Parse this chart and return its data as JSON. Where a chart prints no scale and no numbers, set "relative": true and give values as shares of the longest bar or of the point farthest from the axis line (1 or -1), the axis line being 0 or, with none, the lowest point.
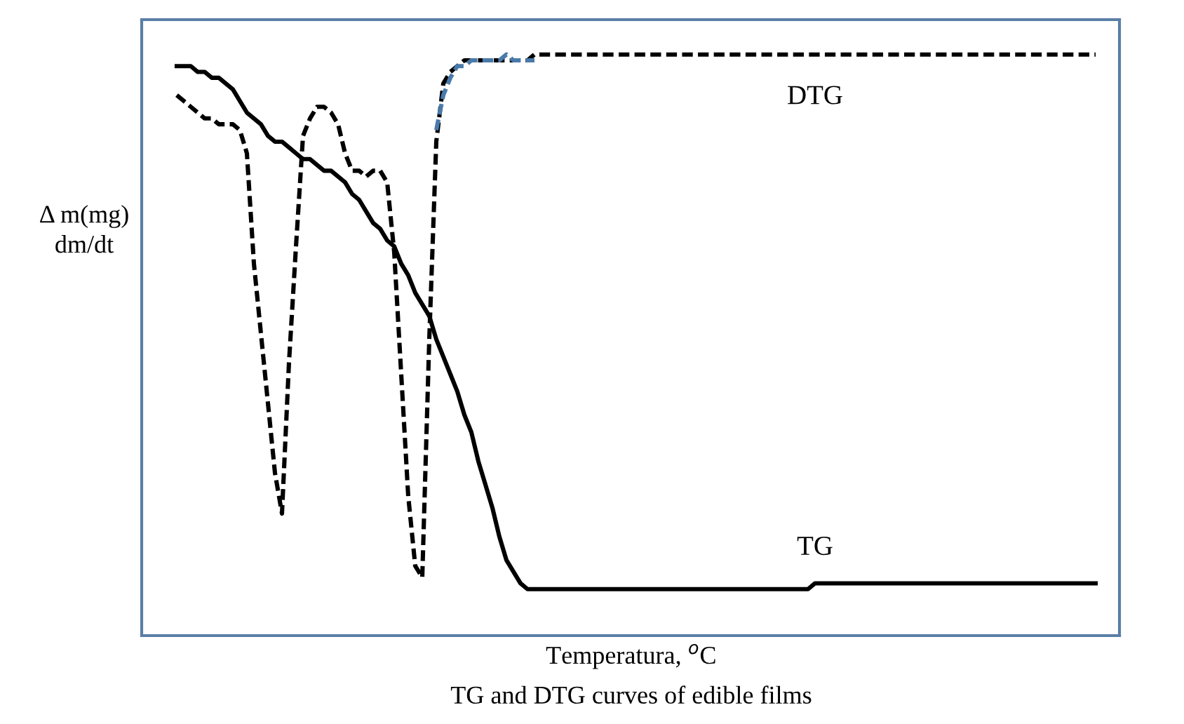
{
  "chart_data": {
    "type": "line",
    "relative": true,
    "ylabel": "Δ m(mg)\ndm/dt",
    "xlabel": "Temperatura, $^{o}$C",
    "annotations": [
      "TG and DTG curves of edible films"
    ],
    "legend": false,
    "grid": false,
    "categories": [
      null,
      null,
      null,
      null,
      null,
      null,
      null,
      null,
      null,
      null,
      null,
      null,
      null,
      null,
      null,
      null,
      null,
      null,
      null,
      null,
      null,
      null,
      null,
      null,
      null,
      null,
      null,
      null,
      null,
      null,
      null,
      null,
      null,
      null,
      null,
      null,
      null,
      null,
      null,
      null,
      null,
      null,
      null,
      null,
      null,
      null,
      null,
      null,
      null,
      null,
      null,
      null,
      null,
      null,
      null,
      null,
      null,
      null,
      null,
      null,
      null,
      null,
      null,
      null,
      null,
      null,
      null,
      null,
      null,
      null,
      null,
      null,
      null,
      null,
      null,
      null,
      null,
      null,
      null,
      null,
      null,
      null,
      null,
      null,
      null,
      null,
      null,
      null,
      null,
      null,
      null,
      null,
      null,
      null,
      null,
      null,
      null,
      null,
      null,
      null,
      null,
      null,
      null,
      null,
      null,
      null,
      null,
      null,
      null,
      null,
      null,
      null,
      null,
      null,
      null,
      null,
      null,
      null,
      null,
      null,
      null,
      null,
      null,
      null,
      null,
      null,
      null,
      null,
      null,
      null,
      null,
      null
    ],
    "series": [
      {
        "name": "DTG",
        "color": "#000000",
        "line_style": "dashed",
        "values": [
          0.93,
          0.92,
          0.91,
          0.9,
          0.89,
          0.89,
          0.88,
          0.88,
          0.88,
          0.87,
          0.83,
          0.64,
          0.52,
          0.4,
          0.28,
          0.21,
          0.47,
          0.67,
          0.86,
          0.89,
          0.91,
          0.91,
          0.9,
          0.88,
          0.83,
          0.8,
          0.8,
          0.79,
          0.8,
          0.8,
          0.78,
          0.66,
          0.45,
          0.24,
          0.12,
          0.1,
          0.51,
          0.85,
          0.95,
          0.97,
          0.98,
          0.99,
          0.99,
          0.99,
          0.99,
          0.99,
          0.99,
          0.99,
          0.99,
          0.99,
          0.99,
          1.0,
          1.0,
          1.0,
          1.0,
          1.0,
          1.0,
          1.0,
          1.0,
          1.0,
          1.0,
          1.0,
          1.0,
          1.0,
          1.0,
          1.0,
          1.0,
          1.0,
          1.0,
          1.0,
          1.0,
          1.0,
          1.0,
          1.0,
          1.0,
          1.0,
          1.0,
          1.0,
          1.0,
          1.0,
          1.0,
          1.0,
          1.0,
          1.0,
          1.0,
          1.0,
          1.0,
          1.0,
          1.0,
          1.0,
          1.0,
          1.0,
          1.0,
          1.0,
          1.0,
          1.0,
          1.0,
          1.0,
          1.0,
          1.0,
          1.0,
          1.0,
          1.0,
          1.0,
          1.0,
          1.0,
          1.0,
          1.0,
          1.0,
          1.0,
          1.0,
          1.0,
          1.0,
          1.0,
          1.0,
          1.0,
          1.0,
          1.0,
          1.0,
          1.0,
          1.0,
          1.0,
          1.0,
          1.0,
          1.0,
          1.0,
          1.0,
          1.0,
          1.0,
          1.0,
          1.0,
          1.0
        ]
      },
      {
        "name": "TG",
        "color": "#000000",
        "line_style": "solid",
        "values": [
          0.98,
          0.98,
          0.98,
          0.97,
          0.97,
          0.96,
          0.96,
          0.95,
          0.94,
          0.92,
          0.9,
          0.89,
          0.88,
          0.86,
          0.85,
          0.85,
          0.84,
          0.83,
          0.82,
          0.82,
          0.81,
          0.8,
          0.8,
          0.79,
          0.78,
          0.76,
          0.75,
          0.73,
          0.71,
          0.7,
          0.68,
          0.67,
          0.64,
          0.62,
          0.59,
          0.57,
          0.55,
          0.51,
          0.48,
          0.45,
          0.42,
          0.38,
          0.35,
          0.3,
          0.26,
          0.22,
          0.17,
          0.13,
          0.11,
          0.09,
          0.08,
          0.08,
          0.08,
          0.08,
          0.08,
          0.08,
          0.08,
          0.08,
          0.08,
          0.08,
          0.08,
          0.08,
          0.08,
          0.08,
          0.08,
          0.08,
          0.08,
          0.08,
          0.08,
          0.08,
          0.08,
          0.08,
          0.08,
          0.08,
          0.08,
          0.08,
          0.08,
          0.08,
          0.08,
          0.08,
          0.08,
          0.08,
          0.08,
          0.08,
          0.08,
          0.08,
          0.08,
          0.08,
          0.08,
          0.08,
          0.08,
          0.09,
          0.09,
          0.09,
          0.09,
          0.09,
          0.09,
          0.09,
          0.09,
          0.09,
          0.09,
          0.09,
          0.09,
          0.09,
          0.09,
          0.09,
          0.09,
          0.09,
          0.09,
          0.09,
          0.09,
          0.09,
          0.09,
          0.09,
          0.09,
          0.09,
          0.09,
          0.09,
          0.09,
          0.09,
          0.09,
          0.09,
          0.09,
          0.09,
          0.09,
          0.09,
          0.09,
          0.09,
          0.09,
          0.09,
          0.09,
          0.09
        ]
      },
      {
        "color": "#4a7aab",
        "line_style": "dashed",
        "values": [
          null,
          null,
          null,
          null,
          null,
          null,
          null,
          null,
          null,
          null,
          null,
          null,
          null,
          null,
          null,
          null,
          null,
          null,
          null,
          null,
          null,
          null,
          null,
          null,
          null,
          null,
          null,
          null,
          null,
          null,
          null,
          null,
          null,
          null,
          null,
          null,
          null,
          0.87,
          0.93,
          0.96,
          0.98,
          0.98,
          0.99,
          0.99,
          0.99,
          0.99,
          0.99,
          1.0,
          0.99,
          0.99,
          0.99,
          0.99,
          null,
          null,
          null,
          null,
          null,
          null,
          null,
          null,
          null,
          null,
          null,
          null,
          null,
          null,
          null,
          null,
          null,
          null,
          null,
          null,
          null,
          null,
          null,
          null,
          null,
          null,
          null,
          null,
          null,
          null,
          null,
          null,
          null,
          null,
          null,
          null,
          null,
          null,
          null,
          null,
          null,
          null,
          null,
          null,
          null,
          null,
          null,
          null,
          null,
          null,
          null,
          null,
          null,
          null,
          null,
          null,
          null,
          null,
          null,
          null,
          null,
          null,
          null,
          null,
          null,
          null,
          null,
          null,
          null,
          null,
          null,
          null,
          null,
          null,
          null,
          null,
          null,
          null,
          null,
          null
        ]
      }
    ]
  }
}
